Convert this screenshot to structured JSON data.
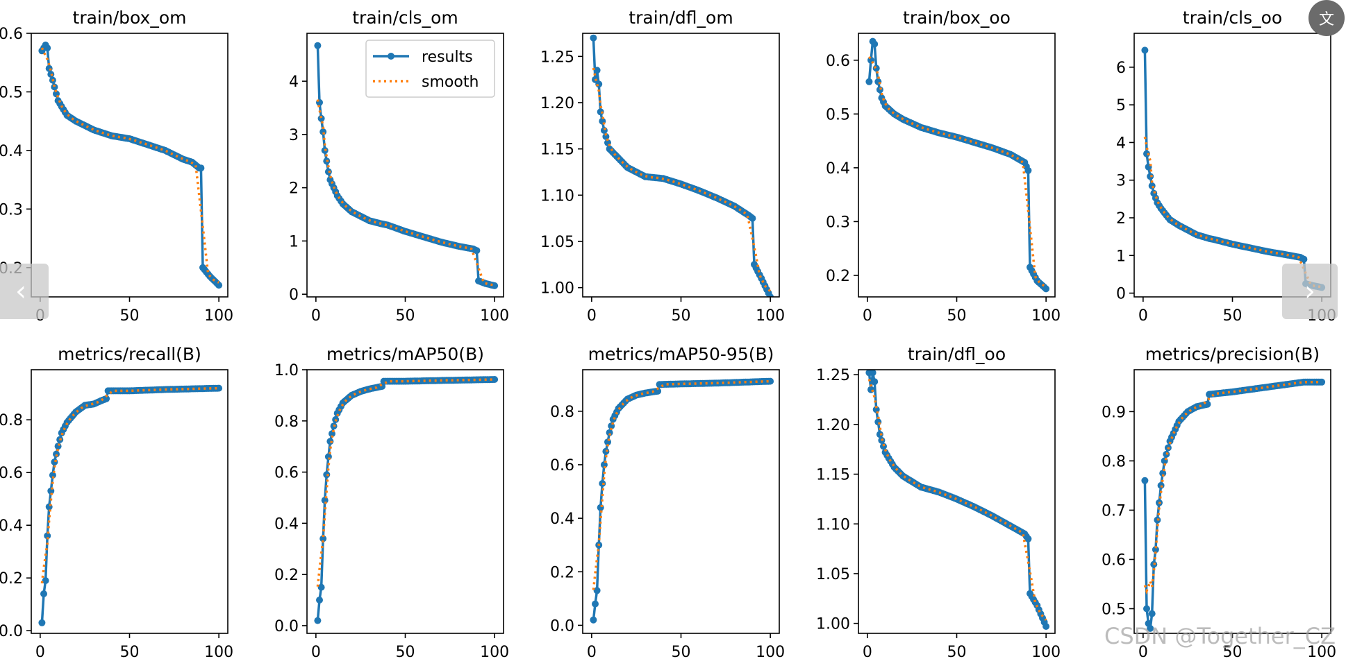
{
  "chart_data": [
    {
      "type": "line",
      "title": "train/box_om",
      "ylim": [
        0.15,
        0.6
      ],
      "yticks": [
        0.2,
        0.3,
        0.4,
        0.5,
        0.6
      ],
      "yticklabels": [
        "0.2",
        "0.3",
        "0.4",
        "0.5",
        "0.6"
      ],
      "xlim": [
        -5,
        105
      ],
      "xticks": [
        0,
        50,
        100
      ],
      "anchors": [
        [
          1,
          0.57
        ],
        [
          2,
          0.575
        ],
        [
          3,
          0.58
        ],
        [
          4,
          0.575
        ],
        [
          5,
          0.54
        ],
        [
          7,
          0.52
        ],
        [
          10,
          0.485
        ],
        [
          15,
          0.46
        ],
        [
          20,
          0.45
        ],
        [
          30,
          0.435
        ],
        [
          40,
          0.425
        ],
        [
          50,
          0.42
        ],
        [
          60,
          0.41
        ],
        [
          70,
          0.4
        ],
        [
          80,
          0.385
        ],
        [
          85,
          0.38
        ],
        [
          89,
          0.37
        ],
        [
          90,
          0.37
        ],
        [
          91,
          0.2
        ],
        [
          95,
          0.185
        ],
        [
          100,
          0.17
        ]
      ]
    },
    {
      "type": "line",
      "title": "train/cls_om",
      "ylim": [
        -0.05,
        4.9
      ],
      "yticks": [
        0,
        1,
        2,
        3,
        4
      ],
      "yticklabels": [
        "0",
        "1",
        "2",
        "3",
        "4"
      ],
      "xlim": [
        -5,
        105
      ],
      "xticks": [
        0,
        50,
        100
      ],
      "anchors": [
        [
          1,
          4.67
        ],
        [
          2,
          3.6
        ],
        [
          3,
          3.3
        ],
        [
          4,
          3.05
        ],
        [
          5,
          2.7
        ],
        [
          6,
          2.5
        ],
        [
          7,
          2.3
        ],
        [
          8,
          2.15
        ],
        [
          10,
          2.0
        ],
        [
          12,
          1.85
        ],
        [
          15,
          1.7
        ],
        [
          20,
          1.55
        ],
        [
          30,
          1.38
        ],
        [
          37,
          1.32
        ],
        [
          40,
          1.3
        ],
        [
          50,
          1.18
        ],
        [
          60,
          1.08
        ],
        [
          70,
          0.98
        ],
        [
          80,
          0.9
        ],
        [
          88,
          0.85
        ],
        [
          90,
          0.82
        ],
        [
          91,
          0.25
        ],
        [
          95,
          0.2
        ],
        [
          100,
          0.16
        ]
      ]
    },
    {
      "type": "line",
      "title": "train/dfl_om",
      "ylim": [
        0.99,
        1.275
      ],
      "yticks": [
        1.0,
        1.05,
        1.1,
        1.15,
        1.2,
        1.25
      ],
      "yticklabels": [
        "1.00",
        "1.05",
        "1.10",
        "1.15",
        "1.20",
        "1.25"
      ],
      "xlim": [
        -5,
        105
      ],
      "xticks": [
        0,
        50,
        100
      ],
      "anchors": [
        [
          1,
          1.27
        ],
        [
          2,
          1.225
        ],
        [
          3,
          1.235
        ],
        [
          4,
          1.22
        ],
        [
          5,
          1.19
        ],
        [
          7,
          1.17
        ],
        [
          10,
          1.15
        ],
        [
          15,
          1.14
        ],
        [
          20,
          1.13
        ],
        [
          30,
          1.12
        ],
        [
          40,
          1.118
        ],
        [
          50,
          1.112
        ],
        [
          60,
          1.105
        ],
        [
          70,
          1.097
        ],
        [
          80,
          1.088
        ],
        [
          88,
          1.078
        ],
        [
          90,
          1.075
        ],
        [
          91,
          1.025
        ],
        [
          95,
          1.01
        ],
        [
          100,
          0.99
        ]
      ]
    },
    {
      "type": "line",
      "title": "train/box_oo",
      "ylim": [
        0.16,
        0.65
      ],
      "yticks": [
        0.2,
        0.3,
        0.4,
        0.5,
        0.6
      ],
      "yticklabels": [
        "0.2",
        "0.3",
        "0.4",
        "0.5",
        "0.6"
      ],
      "xlim": [
        -5,
        105
      ],
      "xticks": [
        0,
        50,
        100
      ],
      "anchors": [
        [
          1,
          0.56
        ],
        [
          2,
          0.6
        ],
        [
          3,
          0.635
        ],
        [
          4,
          0.63
        ],
        [
          5,
          0.585
        ],
        [
          6,
          0.56
        ],
        [
          8,
          0.53
        ],
        [
          10,
          0.515
        ],
        [
          15,
          0.5
        ],
        [
          20,
          0.49
        ],
        [
          30,
          0.475
        ],
        [
          40,
          0.465
        ],
        [
          50,
          0.457
        ],
        [
          60,
          0.447
        ],
        [
          70,
          0.437
        ],
        [
          80,
          0.425
        ],
        [
          88,
          0.41
        ],
        [
          90,
          0.395
        ],
        [
          91,
          0.215
        ],
        [
          95,
          0.19
        ],
        [
          100,
          0.175
        ]
      ]
    },
    {
      "type": "line",
      "title": "train/cls_oo",
      "ylim": [
        -0.1,
        6.9
      ],
      "yticks": [
        0,
        1,
        2,
        3,
        4,
        5,
        6
      ],
      "yticklabels": [
        "0",
        "1",
        "2",
        "3",
        "4",
        "5",
        "6"
      ],
      "xlim": [
        -5,
        105
      ],
      "xticks": [
        0,
        50,
        100
      ],
      "anchors": [
        [
          1,
          6.45
        ],
        [
          2,
          3.7
        ],
        [
          3,
          3.35
        ],
        [
          4,
          3.1
        ],
        [
          5,
          2.85
        ],
        [
          6,
          2.65
        ],
        [
          8,
          2.4
        ],
        [
          10,
          2.25
        ],
        [
          15,
          1.95
        ],
        [
          20,
          1.8
        ],
        [
          30,
          1.55
        ],
        [
          37,
          1.45
        ],
        [
          40,
          1.42
        ],
        [
          50,
          1.3
        ],
        [
          60,
          1.2
        ],
        [
          70,
          1.1
        ],
        [
          80,
          1.02
        ],
        [
          88,
          0.95
        ],
        [
          90,
          0.9
        ],
        [
          91,
          0.25
        ],
        [
          95,
          0.2
        ],
        [
          100,
          0.15
        ]
      ]
    },
    {
      "type": "line",
      "title": "metrics/recall(B)",
      "ylim": [
        -0.01,
        0.99
      ],
      "yticks": [
        0.0,
        0.2,
        0.4,
        0.6,
        0.8
      ],
      "yticklabels": [
        "0.0",
        "0.2",
        "0.4",
        "0.6",
        "0.8"
      ],
      "xlim": [
        -5,
        105
      ],
      "xticks": [
        0,
        50,
        100
      ],
      "anchors": [
        [
          1,
          0.03
        ],
        [
          2,
          0.14
        ],
        [
          3,
          0.19
        ],
        [
          4,
          0.36
        ],
        [
          5,
          0.47
        ],
        [
          6,
          0.53
        ],
        [
          7,
          0.59
        ],
        [
          8,
          0.64
        ],
        [
          10,
          0.7
        ],
        [
          12,
          0.75
        ],
        [
          15,
          0.79
        ],
        [
          20,
          0.83
        ],
        [
          25,
          0.855
        ],
        [
          30,
          0.86
        ],
        [
          35,
          0.875
        ],
        [
          37,
          0.88
        ],
        [
          38,
          0.91
        ],
        [
          50,
          0.91
        ],
        [
          70,
          0.915
        ],
        [
          100,
          0.92
        ]
      ]
    },
    {
      "type": "line",
      "title": "metrics/mAP50(B)",
      "ylim": [
        -0.03,
        1.0
      ],
      "yticks": [
        0.0,
        0.2,
        0.4,
        0.6,
        0.8,
        1.0
      ],
      "yticklabels": [
        "0.0",
        "0.2",
        "0.4",
        "0.6",
        "0.8",
        "1.0"
      ],
      "xlim": [
        -5,
        105
      ],
      "xticks": [
        0,
        50,
        100
      ],
      "anchors": [
        [
          1,
          0.02
        ],
        [
          2,
          0.1
        ],
        [
          3,
          0.15
        ],
        [
          4,
          0.34
        ],
        [
          5,
          0.49
        ],
        [
          6,
          0.59
        ],
        [
          7,
          0.66
        ],
        [
          8,
          0.72
        ],
        [
          10,
          0.78
        ],
        [
          12,
          0.83
        ],
        [
          15,
          0.87
        ],
        [
          20,
          0.9
        ],
        [
          25,
          0.915
        ],
        [
          30,
          0.925
        ],
        [
          37,
          0.935
        ],
        [
          38,
          0.955
        ],
        [
          50,
          0.955
        ],
        [
          70,
          0.958
        ],
        [
          100,
          0.962
        ]
      ]
    },
    {
      "type": "line",
      "title": "metrics/mAP50-95(B)",
      "ylim": [
        -0.03,
        0.955
      ],
      "yticks": [
        0.0,
        0.2,
        0.4,
        0.6,
        0.8
      ],
      "yticklabels": [
        "0.0",
        "0.2",
        "0.4",
        "0.6",
        "0.8"
      ],
      "xlim": [
        -5,
        105
      ],
      "xticks": [
        0,
        50,
        100
      ],
      "anchors": [
        [
          1,
          0.02
        ],
        [
          2,
          0.08
        ],
        [
          3,
          0.13
        ],
        [
          4,
          0.3
        ],
        [
          5,
          0.44
        ],
        [
          6,
          0.53
        ],
        [
          7,
          0.6
        ],
        [
          8,
          0.65
        ],
        [
          10,
          0.72
        ],
        [
          12,
          0.77
        ],
        [
          15,
          0.81
        ],
        [
          20,
          0.845
        ],
        [
          25,
          0.86
        ],
        [
          30,
          0.868
        ],
        [
          37,
          0.875
        ],
        [
          38,
          0.9
        ],
        [
          50,
          0.902
        ],
        [
          70,
          0.905
        ],
        [
          100,
          0.912
        ]
      ]
    },
    {
      "type": "line",
      "title": "train/dfl_oo",
      "ylim": [
        0.99,
        1.255
      ],
      "yticks": [
        1.0,
        1.05,
        1.1,
        1.15,
        1.2,
        1.25
      ],
      "yticklabels": [
        "1.00",
        "1.05",
        "1.10",
        "1.15",
        "1.20",
        "1.25"
      ],
      "xlim": [
        -5,
        105
      ],
      "xticks": [
        0,
        50,
        100
      ],
      "anchors": [
        [
          1,
          1.252
        ],
        [
          2,
          1.235
        ],
        [
          3,
          1.252
        ],
        [
          4,
          1.243
        ],
        [
          5,
          1.215
        ],
        [
          7,
          1.19
        ],
        [
          10,
          1.172
        ],
        [
          15,
          1.157
        ],
        [
          20,
          1.148
        ],
        [
          30,
          1.137
        ],
        [
          40,
          1.132
        ],
        [
          50,
          1.125
        ],
        [
          60,
          1.117
        ],
        [
          70,
          1.108
        ],
        [
          80,
          1.098
        ],
        [
          88,
          1.09
        ],
        [
          90,
          1.085
        ],
        [
          91,
          1.03
        ],
        [
          95,
          1.018
        ],
        [
          100,
          0.997
        ]
      ]
    },
    {
      "type": "line",
      "title": "metrics/precision(B)",
      "ylim": [
        0.45,
        0.985
      ],
      "yticks": [
        0.5,
        0.6,
        0.7,
        0.8,
        0.9
      ],
      "yticklabels": [
        "0.5",
        "0.6",
        "0.7",
        "0.8",
        "0.9"
      ],
      "xlim": [
        -5,
        105
      ],
      "xticks": [
        0,
        50,
        100
      ],
      "anchors": [
        [
          1,
          0.76
        ],
        [
          2,
          0.5
        ],
        [
          3,
          0.47
        ],
        [
          4,
          0.46
        ],
        [
          5,
          0.49
        ],
        [
          6,
          0.59
        ],
        [
          7,
          0.62
        ],
        [
          8,
          0.68
        ],
        [
          10,
          0.75
        ],
        [
          12,
          0.8
        ],
        [
          15,
          0.84
        ],
        [
          20,
          0.88
        ],
        [
          25,
          0.9
        ],
        [
          30,
          0.91
        ],
        [
          36,
          0.915
        ],
        [
          37,
          0.935
        ],
        [
          50,
          0.94
        ],
        [
          60,
          0.945
        ],
        [
          70,
          0.95
        ],
        [
          80,
          0.955
        ],
        [
          90,
          0.96
        ],
        [
          100,
          0.96
        ]
      ]
    }
  ],
  "legend": {
    "results_label": "results",
    "smooth_label": "smooth"
  },
  "colors": {
    "results": "#1f77b4",
    "smooth": "#ff7f0e"
  },
  "overlay": {
    "translate_icon": "文",
    "prev_icon": "‹",
    "next_icon": "›",
    "watermark": "CSDN @Together_CZ"
  }
}
